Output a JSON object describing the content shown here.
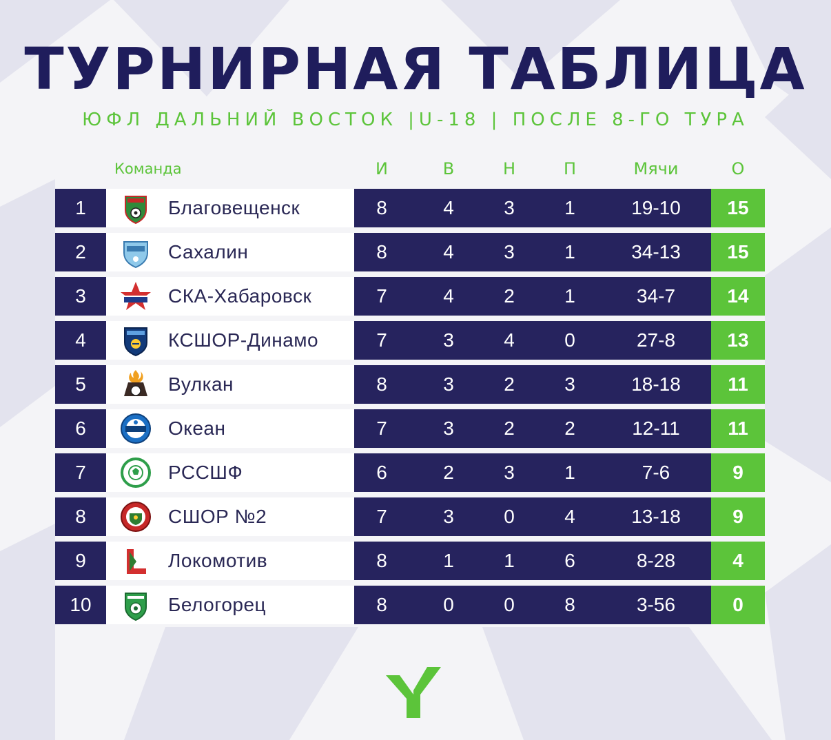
{
  "title": "ТУРНИРНАЯ ТАБЛИЦА",
  "subtitle": "ЮФЛ ДАЛЬНИЙ ВОСТОК |U-18 | ПОСЛЕ 8-ГО ТУРА",
  "columns": {
    "team": "Команда",
    "played": "И",
    "won": "В",
    "drawn": "Н",
    "lost": "П",
    "goals": "Мячи",
    "points": "О"
  },
  "colors": {
    "navy": "#26235e",
    "green": "#5cc43a",
    "title": "#1f1d5c"
  },
  "rows": [
    {
      "pos": "1",
      "team": "Благовещенск",
      "played": "8",
      "won": "4",
      "drawn": "3",
      "lost": "1",
      "goals": "19-10",
      "points": "15",
      "logo": "blagoveshchensk-crest-icon"
    },
    {
      "pos": "2",
      "team": "Сахалин",
      "played": "8",
      "won": "4",
      "drawn": "3",
      "lost": "1",
      "goals": "34-13",
      "points": "15",
      "logo": "sakhalin-crest-icon"
    },
    {
      "pos": "3",
      "team": "СКА-Хабаровск",
      "played": "7",
      "won": "4",
      "drawn": "2",
      "lost": "1",
      "goals": "34-7",
      "points": "14",
      "logo": "ska-star-crest-icon"
    },
    {
      "pos": "4",
      "team": "КСШОР-Динамо",
      "played": "7",
      "won": "3",
      "drawn": "4",
      "lost": "0",
      "goals": "27-8",
      "points": "13",
      "logo": "kshor-dinamo-crest-icon"
    },
    {
      "pos": "5",
      "team": "Вулкан",
      "played": "8",
      "won": "3",
      "drawn": "2",
      "lost": "3",
      "goals": "18-18",
      "points": "11",
      "logo": "vulkan-crest-icon"
    },
    {
      "pos": "6",
      "team": "Океан",
      "played": "7",
      "won": "3",
      "drawn": "2",
      "lost": "2",
      "goals": "12-11",
      "points": "11",
      "logo": "okean-crest-icon"
    },
    {
      "pos": "7",
      "team": "РССШФ",
      "played": "6",
      "won": "2",
      "drawn": "3",
      "lost": "1",
      "goals": "7-6",
      "points": "9",
      "logo": "rsshf-crest-icon"
    },
    {
      "pos": "8",
      "team": "СШОР №2",
      "played": "7",
      "won": "3",
      "drawn": "0",
      "lost": "4",
      "goals": "13-18",
      "points": "9",
      "logo": "sshor2-crest-icon"
    },
    {
      "pos": "9",
      "team": "Локомотив",
      "played": "8",
      "won": "1",
      "drawn": "1",
      "lost": "6",
      "goals": "8-28",
      "points": "4",
      "logo": "lokomotiv-crest-icon"
    },
    {
      "pos": "10",
      "team": "Белогорец",
      "played": "8",
      "won": "0",
      "drawn": "0",
      "lost": "8",
      "goals": "3-56",
      "points": "0",
      "logo": "belogorets-crest-icon"
    }
  ]
}
